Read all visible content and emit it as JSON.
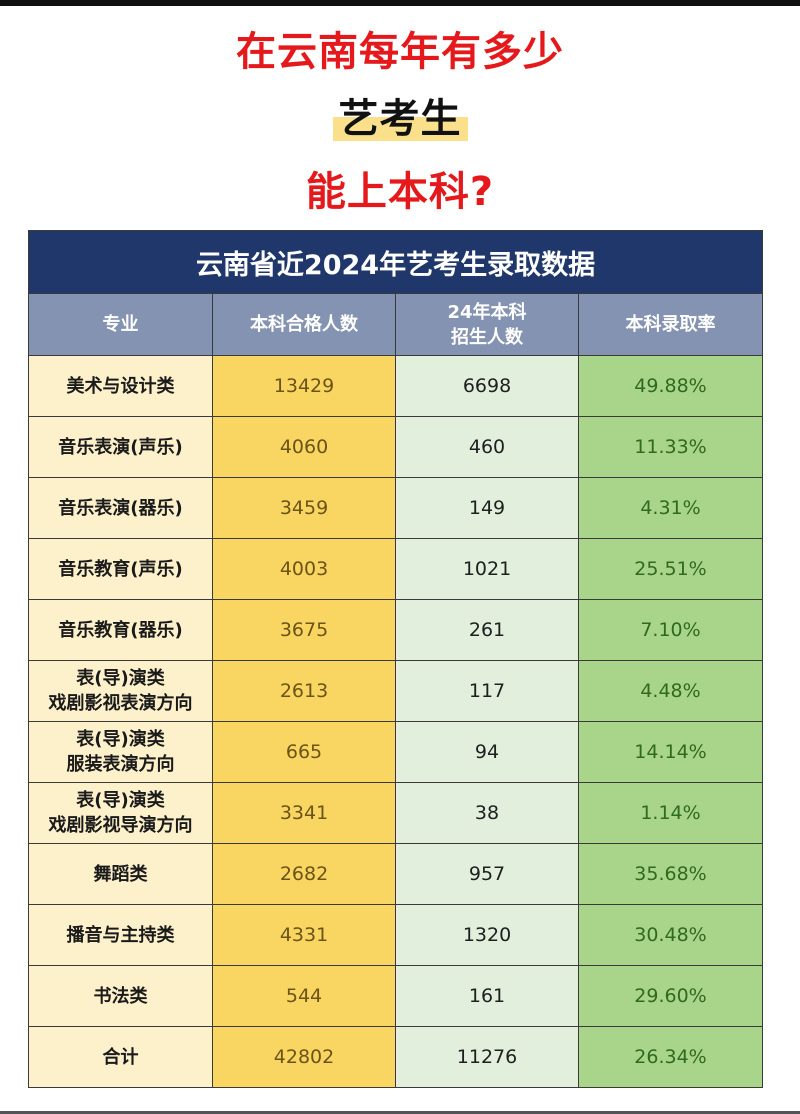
{
  "headline": {
    "line1": "在云南每年有多少",
    "line2": "艺考生",
    "line3": "能上本科?"
  },
  "table": {
    "title": "云南省近2024年艺考生录取数据",
    "columns": [
      "专业",
      "本科合格人数",
      "24年本科\n招生人数",
      "本科录取率"
    ],
    "columns_lines": {
      "c0": "专业",
      "c1": "本科合格人数",
      "c2a": "24年本科",
      "c2b": "招生人数",
      "c3": "本科录取率"
    },
    "rows": [
      {
        "name1": "美术与设计类",
        "name2": "",
        "qualified": "13429",
        "enrolled": "6698",
        "rate": "49.88%"
      },
      {
        "name1": "音乐表演(声乐)",
        "name2": "",
        "qualified": "4060",
        "enrolled": "460",
        "rate": "11.33%"
      },
      {
        "name1": "音乐表演(器乐)",
        "name2": "",
        "qualified": "3459",
        "enrolled": "149",
        "rate": "4.31%"
      },
      {
        "name1": "音乐教育(声乐)",
        "name2": "",
        "qualified": "4003",
        "enrolled": "1021",
        "rate": "25.51%"
      },
      {
        "name1": "音乐教育(器乐)",
        "name2": "",
        "qualified": "3675",
        "enrolled": "261",
        "rate": "7.10%"
      },
      {
        "name1": "表(导)演类",
        "name2": "戏剧影视表演方向",
        "qualified": "2613",
        "enrolled": "117",
        "rate": "4.48%"
      },
      {
        "name1": "表(导)演类",
        "name2": "服装表演方向",
        "qualified": "665",
        "enrolled": "94",
        "rate": "14.14%"
      },
      {
        "name1": "表(导)演类",
        "name2": "戏剧影视导演方向",
        "qualified": "3341",
        "enrolled": "38",
        "rate": "1.14%"
      },
      {
        "name1": "舞蹈类",
        "name2": "",
        "qualified": "2682",
        "enrolled": "957",
        "rate": "35.68%"
      },
      {
        "name1": "播音与主持类",
        "name2": "",
        "qualified": "4331",
        "enrolled": "1320",
        "rate": "30.48%"
      },
      {
        "name1": "书法类",
        "name2": "",
        "qualified": "544",
        "enrolled": "161",
        "rate": "29.60%"
      },
      {
        "name1": "合计",
        "name2": "",
        "qualified": "42802",
        "enrolled": "11276",
        "rate": "26.34%"
      }
    ]
  },
  "colors": {
    "headline_red": "#e5191c",
    "highlight_yellow": "#fbe08c",
    "title_navy": "#1f376b",
    "header_slate": "#8393b1",
    "col_name_bg": "#fdf1cc",
    "col_qualified_bg": "#f9d562",
    "col_enrolled_bg": "#e1efdc",
    "col_rate_bg": "#a9d58a"
  }
}
